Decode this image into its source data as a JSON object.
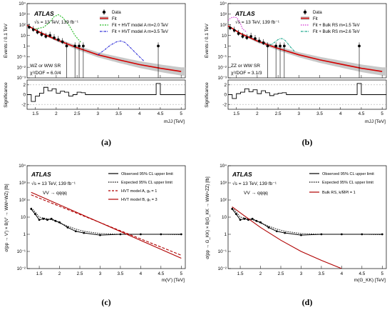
{
  "captions": [
    "(a)",
    "(b)",
    "(c)",
    "(d)"
  ],
  "chart_data": [
    {
      "type": "scatter",
      "panel": "a",
      "atlas_label": "ATLAS",
      "energy_label": "√s = 13 TeV, 139 fb⁻¹",
      "region_label": "WZ or WW SR",
      "chi2_label": "χ²/DOF = 6.0/4",
      "xlabel": "mJJ [TeV]",
      "ylabel": "Events / 0.1 TeV",
      "ratio_ylabel": "Significance",
      "xlim": [
        1.3,
        5.1
      ],
      "ylim_log": [
        -3,
        4
      ],
      "ratio_ylim": [
        -3,
        3
      ],
      "x_ticks": [
        "1.5",
        "2",
        "2.5",
        "3",
        "3.5",
        "4",
        "4.5",
        "5"
      ],
      "y_ticks": [
        "10⁻³",
        "10⁻²",
        "10⁻¹",
        "1",
        "10",
        "10²",
        "10³",
        "10⁴"
      ],
      "ratio_ticks": [
        "2",
        "0",
        "-2"
      ],
      "legend": [
        "Data",
        "Fit",
        "Fit + HVT model A m=2.0 TeV",
        "Fit + HVT model A m=3.5 TeV"
      ],
      "colors": {
        "fit": "#d40000",
        "band": "#c8c8c8",
        "sig1": "#22bb22",
        "sig2": "#2a2ad6"
      },
      "data": {
        "x": [
          1.35,
          1.45,
          1.55,
          1.65,
          1.75,
          1.85,
          1.95,
          2.05,
          2.15,
          2.25,
          2.45,
          2.55,
          2.65,
          4.45
        ],
        "y": [
          60,
          35,
          20,
          12,
          8,
          10,
          6,
          4,
          2.5,
          1,
          1,
          1,
          1,
          1
        ]
      },
      "fit": {
        "x": [
          1.3,
          1.6,
          2,
          2.5,
          3,
          3.5,
          4,
          4.5,
          5
        ],
        "y": [
          90,
          20,
          4,
          0.7,
          0.15,
          0.05,
          0.018,
          0.008,
          0.004
        ]
      },
      "signals": [
        {
          "x": [
            1.5,
            1.7,
            1.85,
            1.95,
            2.05,
            2.15,
            2.3,
            2.45,
            2.6
          ],
          "y": [
            40,
            60,
            180,
            600,
            900,
            500,
            100,
            10,
            2
          ]
        },
        {
          "x": [
            3.0,
            3.15,
            3.3,
            3.45,
            3.55,
            3.65,
            3.8,
            3.95,
            4.1
          ],
          "y": [
            0.15,
            0.4,
            1.2,
            2.5,
            3,
            2.2,
            0.6,
            0.15,
            0.04
          ]
        }
      ],
      "significance": {
        "edges": [
          1.3,
          1.4,
          1.5,
          1.6,
          1.7,
          1.8,
          1.9,
          2.0,
          2.1,
          2.2,
          2.3,
          2.4,
          2.5,
          2.6,
          2.7,
          4.4,
          4.5,
          5.1
        ],
        "values": [
          0,
          -1.4,
          -0.3,
          0.3,
          1.5,
          0.8,
          1.2,
          0.3,
          0.7,
          0.5,
          -0.3,
          0,
          0.5,
          0.4,
          0,
          2.3,
          0
        ]
      }
    },
    {
      "type": "scatter",
      "panel": "b",
      "atlas_label": "ATLAS",
      "energy_label": "√s = 13 TeV, 139 fb⁻¹",
      "region_label": "ZZ or WW SR",
      "chi2_label": "χ²/DOF = 3.1/3",
      "xlabel": "mJJ [TeV]",
      "ylabel": "Events / 0.1 TeV",
      "ratio_ylabel": "Significance",
      "xlim": [
        1.3,
        5.1
      ],
      "ylim_log": [
        -3,
        4
      ],
      "ratio_ylim": [
        -3,
        3
      ],
      "x_ticks": [
        "1.5",
        "2",
        "2.5",
        "3",
        "3.5",
        "4",
        "4.5",
        "5"
      ],
      "y_ticks": [
        "10⁻³",
        "10⁻²",
        "10⁻¹",
        "1",
        "10",
        "10²",
        "10³",
        "10⁴"
      ],
      "ratio_ticks": [
        "2",
        "0",
        "-2"
      ],
      "legend": [
        "Data",
        "Fit",
        "Fit + Bulk RS m=1.5 TeV",
        "Fit + Bulk RS m=2.6 TeV"
      ],
      "colors": {
        "fit": "#d40000",
        "band": "#c8c8c8",
        "sig1": "#d22cd2",
        "sig2": "#1aa88c"
      },
      "data": {
        "x": [
          1.35,
          1.45,
          1.55,
          1.65,
          1.75,
          1.85,
          1.95,
          2.05,
          2.15,
          2.25,
          2.45,
          2.55,
          2.65,
          4.45
        ],
        "y": [
          50,
          30,
          15,
          8,
          6,
          8,
          5,
          3,
          2,
          1,
          1,
          1,
          1,
          1
        ]
      },
      "fit": {
        "x": [
          1.3,
          1.6,
          2,
          2.5,
          3,
          3.5,
          4,
          4.5,
          5
        ],
        "y": [
          80,
          15,
          3,
          0.6,
          0.15,
          0.05,
          0.02,
          0.008,
          0.004
        ]
      },
      "signals": [
        {
          "x": [
            1.3,
            1.35,
            1.4,
            1.45,
            1.5,
            1.55,
            1.6,
            1.65,
            1.75
          ],
          "y": [
            250,
            400,
            500,
            520,
            480,
            300,
            120,
            40,
            20
          ]
        },
        {
          "x": [
            2.3,
            2.4,
            2.5,
            2.55,
            2.6,
            2.65,
            2.7,
            2.8,
            2.9
          ],
          "y": [
            1.2,
            2,
            4,
            5,
            5,
            4,
            2.5,
            0.8,
            0.3
          ]
        }
      ],
      "significance": {
        "edges": [
          1.3,
          1.4,
          1.5,
          1.6,
          1.7,
          1.8,
          1.9,
          2.0,
          2.1,
          2.2,
          2.3,
          2.4,
          2.5,
          2.6,
          2.7,
          4.4,
          4.5,
          5.1
        ],
        "values": [
          0,
          -0.8,
          0.2,
          0.5,
          1.2,
          0.6,
          1.0,
          0.2,
          0.8,
          0.4,
          -0.2,
          0.1,
          0.3,
          0.4,
          0,
          2.3,
          0
        ]
      }
    },
    {
      "type": "line",
      "panel": "c",
      "atlas_label": "ATLAS",
      "energy_label": "√s = 13 TeV, 139 fb⁻¹",
      "process_label": "VV → qqqq",
      "xlabel": "m(V') [TeV]",
      "ylabel": "σ(pp → V') × B(V' → WW+WZ) [fb]",
      "xlim": [
        1.2,
        5.1
      ],
      "ylim_log": [
        -2,
        4
      ],
      "x_ticks": [
        "1.5",
        "2",
        "2.5",
        "3",
        "3.5",
        "4",
        "4.5",
        "5"
      ],
      "y_ticks": [
        "10⁻²",
        "10⁻¹",
        "1",
        "10",
        "10²",
        "10³",
        "10⁴"
      ],
      "legend": [
        "Observed 95% CL upper limit",
        "Expected 95% CL upper limit",
        "HVT model A, gᵥ = 1",
        "HVT model B, gᵥ = 3"
      ],
      "series": [
        {
          "name": "Observed 95% CL upper limit",
          "x": [
            1.3,
            1.4,
            1.5,
            1.6,
            1.7,
            1.8,
            1.9,
            2.0,
            2.2,
            2.4,
            2.6,
            3.0,
            3.5,
            4.0,
            4.5,
            5.0
          ],
          "y": [
            30,
            15,
            7,
            8,
            7,
            8,
            6,
            5,
            2.5,
            1.5,
            1.2,
            0.9,
            1.0,
            1.0,
            1.0,
            1.0
          ]
        },
        {
          "name": "Expected 95% CL upper limit",
          "x": [
            1.3,
            1.4,
            1.5,
            1.6,
            1.7,
            1.8,
            1.9,
            2.0,
            2.2,
            2.4,
            2.6,
            3.0,
            3.5,
            4.0,
            4.5,
            5.0
          ],
          "y": [
            35,
            20,
            10,
            9,
            8,
            7,
            6,
            4.5,
            3,
            2,
            1.5,
            1.1,
            1.0,
            1.0,
            1.0,
            0.95
          ]
        },
        {
          "name": "HVT model A, gᵥ = 1",
          "x": [
            1.3,
            5.0
          ],
          "y": [
            200,
            0.06
          ]
        },
        {
          "name": "HVT model B, gᵥ = 3",
          "x": [
            1.3,
            5.0
          ],
          "y": [
            280,
            0.04
          ]
        }
      ]
    },
    {
      "type": "line",
      "panel": "d",
      "atlas_label": "ATLAS",
      "energy_label": "√s = 13 TeV, 139 fb⁻¹",
      "process_label": "VV → qqqq",
      "xlabel": "m(G_KK) [TeV]",
      "ylabel": "σ(pp → G_KK) × B(G_KK → WW+ZZ) [fb]",
      "xlim": [
        1.2,
        5.1
      ],
      "ylim_log": [
        -2,
        4
      ],
      "x_ticks": [
        "1.5",
        "2",
        "2.5",
        "3",
        "3.5",
        "4",
        "4.5",
        "5"
      ],
      "y_ticks": [
        "10⁻²",
        "10⁻¹",
        "1",
        "10",
        "10²",
        "10³",
        "10⁴"
      ],
      "legend": [
        "Observed 95% CL upper limit",
        "Expected 95% CL upper limit",
        "Bulk RS, k/M̄Pl = 1"
      ],
      "series": [
        {
          "name": "Observed 95% CL upper limit",
          "x": [
            1.3,
            1.4,
            1.5,
            1.6,
            1.7,
            1.8,
            1.9,
            2.0,
            2.2,
            2.4,
            2.6,
            3.0,
            3.5,
            4.0,
            4.5,
            5.0
          ],
          "y": [
            30,
            15,
            7,
            8,
            7,
            8,
            6,
            5,
            2.5,
            1.5,
            1.2,
            0.9,
            1.0,
            1.0,
            1.0,
            1.0
          ]
        },
        {
          "name": "Expected 95% CL upper limit",
          "x": [
            1.3,
            1.4,
            1.5,
            1.6,
            1.7,
            1.8,
            1.9,
            2.0,
            2.2,
            2.4,
            2.6,
            3.0,
            3.5,
            4.0,
            4.5,
            5.0
          ],
          "y": [
            35,
            20,
            10,
            9,
            8,
            7,
            6,
            4.5,
            3,
            2,
            1.5,
            1.1,
            1.0,
            1.0,
            1.0,
            0.95
          ]
        },
        {
          "name": "Bulk RS, k/M̄Pl = 1",
          "x": [
            1.3,
            1.6,
            2.0,
            2.5,
            3.0,
            3.5,
            4.0
          ],
          "y": [
            40,
            12,
            2.5,
            0.45,
            0.1,
            0.03,
            0.01
          ]
        }
      ]
    }
  ]
}
